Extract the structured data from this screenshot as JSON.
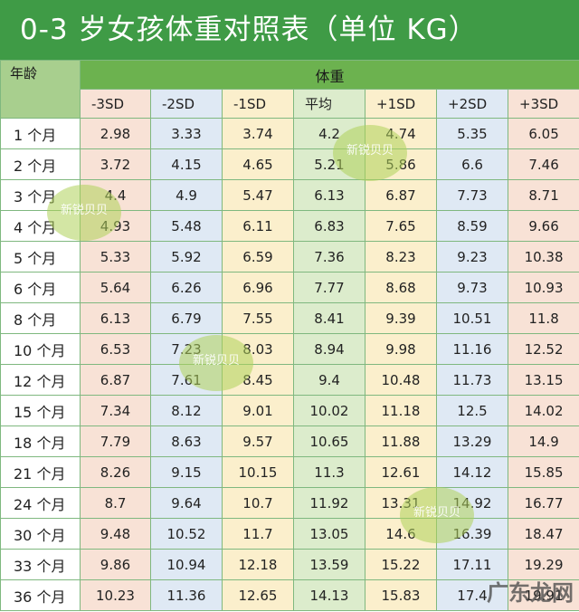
{
  "title": "0-3 岁女孩体重对照表（单位 KG）",
  "corner_label": "年龄",
  "group_label": "体重",
  "columns": [
    "-3SD",
    "-2SD",
    "-1SD",
    "平均",
    "+1SD",
    "+2SD",
    "+3SD"
  ],
  "rows": [
    {
      "age": "1 个月",
      "values": [
        "2.98",
        "3.33",
        "3.74",
        "4.2",
        "4.74",
        "5.35",
        "6.05"
      ]
    },
    {
      "age": "2 个月",
      "values": [
        "3.72",
        "4.15",
        "4.65",
        "5.21",
        "5.86",
        "6.6",
        "7.46"
      ]
    },
    {
      "age": "3 个月",
      "values": [
        "4.4",
        "4.9",
        "5.47",
        "6.13",
        "6.87",
        "7.73",
        "8.71"
      ]
    },
    {
      "age": "4 个月",
      "values": [
        "4.93",
        "5.48",
        "6.11",
        "6.83",
        "7.65",
        "8.59",
        "9.66"
      ]
    },
    {
      "age": "5 个月",
      "values": [
        "5.33",
        "5.92",
        "6.59",
        "7.36",
        "8.23",
        "9.23",
        "10.38"
      ]
    },
    {
      "age": "6 个月",
      "values": [
        "5.64",
        "6.26",
        "6.96",
        "7.77",
        "8.68",
        "9.73",
        "10.93"
      ]
    },
    {
      "age": "8 个月",
      "values": [
        "6.13",
        "6.79",
        "7.55",
        "8.41",
        "9.39",
        "10.51",
        "11.8"
      ]
    },
    {
      "age": "10 个月",
      "values": [
        "6.53",
        "7.23",
        "8.03",
        "8.94",
        "9.98",
        "11.16",
        "12.52"
      ]
    },
    {
      "age": "12 个月",
      "values": [
        "6.87",
        "7.61",
        "8.45",
        "9.4",
        "10.48",
        "11.73",
        "13.15"
      ]
    },
    {
      "age": "15 个月",
      "values": [
        "7.34",
        "8.12",
        "9.01",
        "10.02",
        "11.18",
        "12.5",
        "14.02"
      ]
    },
    {
      "age": "18 个月",
      "values": [
        "7.79",
        "8.63",
        "9.57",
        "10.65",
        "11.88",
        "13.29",
        "14.9"
      ]
    },
    {
      "age": "21 个月",
      "values": [
        "8.26",
        "9.15",
        "10.15",
        "11.3",
        "12.61",
        "14.12",
        "15.85"
      ]
    },
    {
      "age": "24 个月",
      "values": [
        "8.7",
        "9.64",
        "10.7",
        "11.92",
        "13.31",
        "14.92",
        "16.77"
      ]
    },
    {
      "age": "30 个月",
      "values": [
        "9.48",
        "10.52",
        "11.7",
        "13.05",
        "14.6",
        "16.39",
        "18.47"
      ]
    },
    {
      "age": "33 个月",
      "values": [
        "9.86",
        "10.94",
        "12.18",
        "13.59",
        "15.22",
        "17.11",
        "19.29"
      ]
    },
    {
      "age": "36 个月",
      "values": [
        "10.23",
        "11.36",
        "12.65",
        "14.13",
        "15.83",
        "17.4",
        "19.91"
      ]
    }
  ],
  "watermark_text": "新锐贝贝",
  "brand_text": "广东龙网",
  "colors": {
    "title_bg": "#3f9b46",
    "group_header_bg": "#6cb24f",
    "corner_bg": "#a8cf8e",
    "col_pink": "#f8e2d6",
    "col_blue": "#dfe9f4",
    "col_yellow": "#fbefcc",
    "col_green": "#dceccc"
  }
}
